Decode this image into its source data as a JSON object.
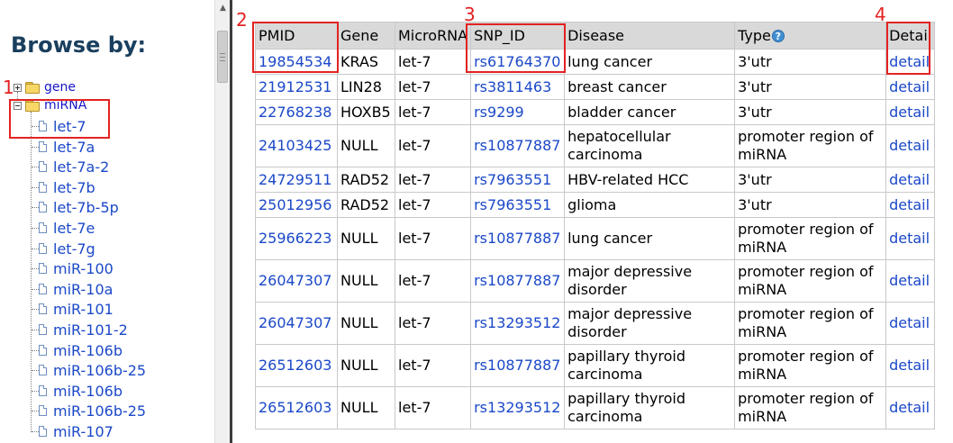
{
  "sidebar": {
    "title": "Browse by:",
    "tree": [
      {
        "label": "gene",
        "expanded": false
      },
      {
        "label": "miRNA",
        "expanded": true
      }
    ],
    "leaves": [
      "let-7",
      "let-7a",
      "let-7a-2",
      "let-7b",
      "let-7b-5p",
      "let-7e",
      "let-7g",
      "miR-100",
      "miR-10a",
      "miR-101",
      "miR-101-2",
      "miR-106b",
      "miR-106b-25",
      "miR-106b",
      "miR-106b-25",
      "miR-107"
    ]
  },
  "table": {
    "headers": [
      "PMID",
      "Gene",
      "MicroRNA",
      "SNP_ID",
      "Disease",
      "Type",
      "Detail"
    ],
    "type_help_icon": "question-mark-icon",
    "rows": [
      {
        "pmid": "19854534",
        "gene": "KRAS",
        "mirna": "let-7",
        "snp": "rs61764370",
        "disease": "lung cancer",
        "type": "3'utr",
        "detail": "detail"
      },
      {
        "pmid": "21912531",
        "gene": "LIN28",
        "mirna": "let-7",
        "snp": "rs3811463",
        "disease": "breast cancer",
        "type": "3'utr",
        "detail": "detail"
      },
      {
        "pmid": "22768238",
        "gene": "HOXB5",
        "mirna": "let-7",
        "snp": "rs9299",
        "disease": "bladder cancer",
        "type": "3'utr",
        "detail": "detail"
      },
      {
        "pmid": "24103425",
        "gene": "NULL",
        "mirna": "let-7",
        "snp": "rs10877887",
        "disease": "hepatocellular carcinoma",
        "type": "promoter region of miRNA",
        "detail": "detail"
      },
      {
        "pmid": "24729511",
        "gene": "RAD52",
        "mirna": "let-7",
        "snp": "rs7963551",
        "disease": "HBV-related HCC",
        "type": "3'utr",
        "detail": "detail"
      },
      {
        "pmid": "25012956",
        "gene": "RAD52",
        "mirna": "let-7",
        "snp": "rs7963551",
        "disease": "glioma",
        "type": "3'utr",
        "detail": "detail"
      },
      {
        "pmid": "25966223",
        "gene": "NULL",
        "mirna": "let-7",
        "snp": "rs10877887",
        "disease": "lung cancer",
        "type": "promoter region of miRNA",
        "detail": "detail"
      },
      {
        "pmid": "26047307",
        "gene": "NULL",
        "mirna": "let-7",
        "snp": "rs10877887",
        "disease": "major depressive disorder",
        "type": "promoter region of miRNA",
        "detail": "detail"
      },
      {
        "pmid": "26047307",
        "gene": "NULL",
        "mirna": "let-7",
        "snp": "rs13293512",
        "disease": "major depressive disorder",
        "type": "promoter region of miRNA",
        "detail": "detail"
      },
      {
        "pmid": "26512603",
        "gene": "NULL",
        "mirna": "let-7",
        "snp": "rs10877887",
        "disease": "papillary thyroid carcinoma",
        "type": "promoter region of miRNA",
        "detail": "detail"
      },
      {
        "pmid": "26512603",
        "gene": "NULL",
        "mirna": "let-7",
        "snp": "rs13293512",
        "disease": "papillary thyroid carcinoma",
        "type": "promoter region of miRNA",
        "detail": "detail"
      }
    ]
  },
  "annotations": [
    "1",
    "2",
    "3",
    "4"
  ],
  "colors": {
    "link": "#1b48c8",
    "annotation": "#e32222",
    "header_bg": "#d9d9d9",
    "title": "#1a3f5e"
  }
}
